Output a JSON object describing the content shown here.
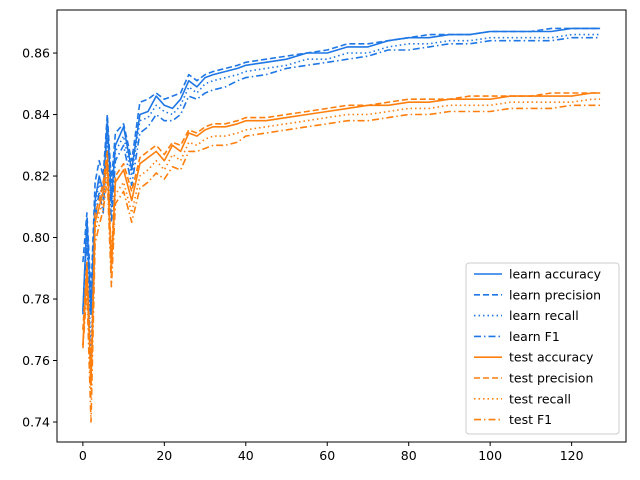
{
  "chart_data": {
    "type": "line",
    "title": "",
    "xlabel": "",
    "ylabel": "",
    "xlim": [
      -6.35,
      133.35
    ],
    "ylim": [
      0.7335,
      0.874
    ],
    "xticks": [
      0,
      20,
      40,
      60,
      80,
      100,
      120
    ],
    "yticks": [
      0.74,
      0.76,
      0.78,
      0.8,
      0.82,
      0.84,
      0.86
    ],
    "ytick_labels": [
      "0.74",
      "0.76",
      "0.78",
      "0.80",
      "0.82",
      "0.84",
      "0.86"
    ],
    "grid": false,
    "legend_position": "lower-right",
    "x": [
      0,
      1,
      2,
      3,
      4,
      5,
      6,
      7,
      8,
      10,
      12,
      14,
      16,
      18,
      20,
      22,
      24,
      26,
      28,
      30,
      32,
      35,
      38,
      40,
      45,
      50,
      55,
      60,
      65,
      70,
      75,
      80,
      85,
      90,
      95,
      100,
      105,
      110,
      115,
      120,
      125,
      127
    ],
    "series": [
      {
        "name": "learn accuracy",
        "color": "#1f77e5",
        "dash": "solid",
        "values": [
          0.776,
          0.806,
          0.775,
          0.812,
          0.82,
          0.815,
          0.838,
          0.812,
          0.83,
          0.836,
          0.822,
          0.84,
          0.841,
          0.846,
          0.843,
          0.842,
          0.845,
          0.851,
          0.849,
          0.852,
          0.853,
          0.854,
          0.855,
          0.856,
          0.857,
          0.858,
          0.86,
          0.86,
          0.862,
          0.862,
          0.864,
          0.865,
          0.865,
          0.866,
          0.866,
          0.867,
          0.867,
          0.867,
          0.867,
          0.868,
          0.868,
          0.868
        ]
      },
      {
        "name": "learn precision",
        "color": "#1f77e5",
        "dash": "dashed",
        "values": [
          0.792,
          0.808,
          0.782,
          0.818,
          0.825,
          0.82,
          0.84,
          0.818,
          0.834,
          0.837,
          0.825,
          0.844,
          0.845,
          0.847,
          0.845,
          0.846,
          0.847,
          0.853,
          0.851,
          0.853,
          0.854,
          0.855,
          0.856,
          0.857,
          0.858,
          0.859,
          0.86,
          0.861,
          0.863,
          0.863,
          0.864,
          0.865,
          0.866,
          0.866,
          0.866,
          0.867,
          0.867,
          0.867,
          0.868,
          0.868,
          0.868,
          0.868
        ]
      },
      {
        "name": "learn recall",
        "color": "#1f77e5",
        "dash": "dotted",
        "values": [
          0.776,
          0.805,
          0.76,
          0.81,
          0.818,
          0.812,
          0.835,
          0.81,
          0.828,
          0.833,
          0.82,
          0.838,
          0.839,
          0.843,
          0.841,
          0.84,
          0.843,
          0.849,
          0.847,
          0.85,
          0.851,
          0.852,
          0.853,
          0.854,
          0.855,
          0.856,
          0.858,
          0.858,
          0.86,
          0.86,
          0.862,
          0.863,
          0.863,
          0.864,
          0.864,
          0.865,
          0.865,
          0.865,
          0.865,
          0.866,
          0.866,
          0.866
        ]
      },
      {
        "name": "learn F1",
        "color": "#1f77e5",
        "dash": "dashdot",
        "values": [
          0.775,
          0.8,
          0.755,
          0.806,
          0.815,
          0.808,
          0.832,
          0.805,
          0.825,
          0.83,
          0.817,
          0.834,
          0.836,
          0.84,
          0.838,
          0.838,
          0.84,
          0.846,
          0.845,
          0.847,
          0.848,
          0.849,
          0.851,
          0.852,
          0.853,
          0.855,
          0.856,
          0.857,
          0.858,
          0.859,
          0.861,
          0.861,
          0.862,
          0.863,
          0.863,
          0.864,
          0.864,
          0.864,
          0.864,
          0.865,
          0.865,
          0.865
        ]
      },
      {
        "name": "test accuracy",
        "color": "#ff7f0e",
        "dash": "solid",
        "values": [
          0.765,
          0.79,
          0.752,
          0.805,
          0.81,
          0.815,
          0.825,
          0.79,
          0.818,
          0.822,
          0.812,
          0.824,
          0.826,
          0.828,
          0.825,
          0.83,
          0.828,
          0.834,
          0.833,
          0.835,
          0.836,
          0.836,
          0.837,
          0.838,
          0.838,
          0.839,
          0.84,
          0.841,
          0.842,
          0.843,
          0.843,
          0.844,
          0.844,
          0.845,
          0.845,
          0.845,
          0.846,
          0.846,
          0.846,
          0.846,
          0.847,
          0.847
        ]
      },
      {
        "name": "test precision",
        "color": "#ff7f0e",
        "dash": "dashed",
        "values": [
          0.77,
          0.792,
          0.756,
          0.808,
          0.812,
          0.818,
          0.828,
          0.793,
          0.82,
          0.824,
          0.815,
          0.826,
          0.828,
          0.83,
          0.827,
          0.831,
          0.83,
          0.835,
          0.834,
          0.836,
          0.837,
          0.837,
          0.838,
          0.839,
          0.839,
          0.84,
          0.841,
          0.842,
          0.843,
          0.843,
          0.844,
          0.845,
          0.845,
          0.845,
          0.846,
          0.846,
          0.846,
          0.846,
          0.847,
          0.847,
          0.847,
          0.847
        ]
      },
      {
        "name": "test recall",
        "color": "#ff7f0e",
        "dash": "dotted",
        "values": [
          0.765,
          0.788,
          0.748,
          0.802,
          0.808,
          0.812,
          0.822,
          0.787,
          0.814,
          0.818,
          0.808,
          0.82,
          0.822,
          0.825,
          0.822,
          0.827,
          0.825,
          0.831,
          0.83,
          0.832,
          0.833,
          0.833,
          0.834,
          0.835,
          0.836,
          0.837,
          0.838,
          0.839,
          0.84,
          0.84,
          0.841,
          0.842,
          0.842,
          0.843,
          0.843,
          0.843,
          0.844,
          0.844,
          0.844,
          0.844,
          0.845,
          0.845
        ]
      },
      {
        "name": "test F1",
        "color": "#ff7f0e",
        "dash": "dashdot",
        "values": [
          0.764,
          0.783,
          0.74,
          0.798,
          0.804,
          0.809,
          0.819,
          0.784,
          0.811,
          0.815,
          0.805,
          0.816,
          0.818,
          0.821,
          0.819,
          0.823,
          0.822,
          0.828,
          0.828,
          0.829,
          0.83,
          0.83,
          0.831,
          0.833,
          0.834,
          0.835,
          0.836,
          0.837,
          0.838,
          0.838,
          0.839,
          0.84,
          0.84,
          0.841,
          0.841,
          0.841,
          0.842,
          0.842,
          0.842,
          0.843,
          0.843,
          0.843
        ]
      }
    ]
  }
}
